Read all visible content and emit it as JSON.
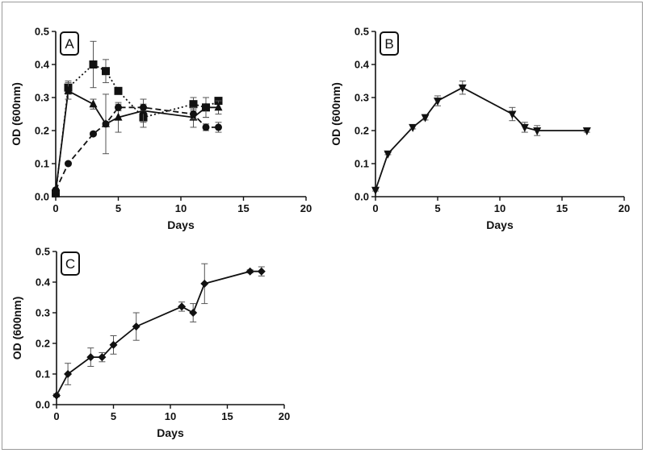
{
  "chart_data": [
    {
      "panel": "A",
      "type": "line",
      "xlabel": "Days",
      "ylabel": "OD (600nm)",
      "xlim": [
        0,
        20
      ],
      "ylim": [
        0,
        0.5
      ],
      "xticks": [
        "0",
        "5",
        "10",
        "15",
        "20"
      ],
      "yticks": [
        "0.0",
        "0.1",
        "0.2",
        "0.3",
        "0.4",
        "0.5"
      ],
      "grid": false,
      "series": [
        {
          "marker": "square",
          "line": "dotted",
          "x": [
            0,
            1,
            3,
            4,
            5,
            7,
            11,
            12,
            13
          ],
          "y": [
            0.01,
            0.33,
            0.4,
            0.38,
            0.32,
            0.24,
            0.28,
            0.27,
            0.29
          ],
          "err": [
            0.005,
            0.02,
            0.07,
            0.035,
            0.01,
            0.03,
            0.02,
            0.03,
            0.01
          ]
        },
        {
          "marker": "triangle",
          "line": "solid",
          "x": [
            0,
            1,
            3,
            4,
            5,
            7,
            11,
            12,
            13
          ],
          "y": [
            0.015,
            0.32,
            0.28,
            0.22,
            0.24,
            0.26,
            0.24,
            0.27,
            0.27
          ],
          "err": [
            0.005,
            0.025,
            0.015,
            0.09,
            0.045,
            0.035,
            0.03,
            0.03,
            0.02
          ]
        },
        {
          "marker": "circle",
          "line": "dashed",
          "x": [
            0,
            1,
            3,
            4,
            5,
            7,
            11,
            12,
            13
          ],
          "y": [
            0.02,
            0.1,
            0.19,
            0.22,
            0.27,
            0.27,
            0.25,
            0.21,
            0.21
          ],
          "err": [
            0.005,
            0.005,
            0.005,
            0.005,
            0.01,
            0.01,
            0.015,
            0.01,
            0.015
          ]
        }
      ]
    },
    {
      "panel": "B",
      "type": "line",
      "xlabel": "Days",
      "ylabel": "OD (600nm)",
      "xlim": [
        0,
        20
      ],
      "ylim": [
        0,
        0.5
      ],
      "xticks": [
        "0",
        "5",
        "10",
        "15",
        "20"
      ],
      "yticks": [
        "0.0",
        "0.1",
        "0.2",
        "0.3",
        "0.4",
        "0.5"
      ],
      "grid": false,
      "series": [
        {
          "marker": "triangle-down",
          "line": "solid",
          "x": [
            0,
            1,
            3,
            4,
            5,
            7,
            11,
            12,
            13,
            17
          ],
          "y": [
            0.02,
            0.13,
            0.21,
            0.24,
            0.29,
            0.33,
            0.25,
            0.21,
            0.2,
            0.2
          ],
          "err": [
            0.003,
            0.003,
            0.005,
            0.008,
            0.015,
            0.02,
            0.02,
            0.015,
            0.015,
            0.005
          ]
        }
      ]
    },
    {
      "panel": "C",
      "type": "line",
      "xlabel": "Days",
      "ylabel": "OD (600nm)",
      "xlim": [
        0,
        20
      ],
      "ylim": [
        0,
        0.5
      ],
      "xticks": [
        "0",
        "5",
        "10",
        "15",
        "20"
      ],
      "yticks": [
        "0.0",
        "0.1",
        "0.2",
        "0.3",
        "0.4",
        "0.5"
      ],
      "grid": false,
      "series": [
        {
          "marker": "diamond",
          "line": "solid",
          "x": [
            0,
            1,
            3,
            4,
            5,
            7,
            11,
            12,
            13,
            17,
            18
          ],
          "y": [
            0.03,
            0.1,
            0.155,
            0.155,
            0.195,
            0.255,
            0.32,
            0.3,
            0.395,
            0.435,
            0.435
          ],
          "err": [
            0.005,
            0.035,
            0.03,
            0.015,
            0.03,
            0.045,
            0.015,
            0.03,
            0.065,
            0.005,
            0.015
          ]
        }
      ]
    }
  ]
}
